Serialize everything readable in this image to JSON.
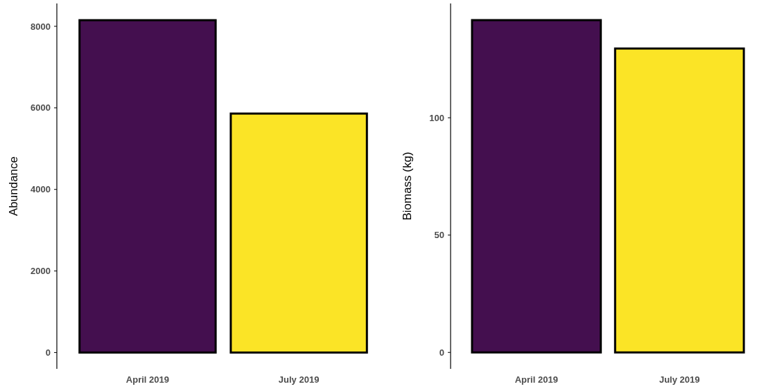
{
  "chart_data": [
    {
      "type": "bar",
      "ylabel": "Abundance",
      "categories": [
        "April 2019",
        "July 2019"
      ],
      "values": [
        8150,
        5860
      ],
      "colors": [
        "#440f4f",
        "#fbe426"
      ],
      "ylim": [
        -400,
        8560
      ],
      "yticks": [
        0,
        2000,
        4000,
        6000,
        8000
      ],
      "grid": false
    },
    {
      "type": "bar",
      "ylabel": "Biomass (kg)",
      "categories": [
        "April 2019",
        "July 2019"
      ],
      "values": [
        141.6,
        129.5
      ],
      "colors": [
        "#440f4f",
        "#fbe426"
      ],
      "ylim": [
        -7,
        148.7
      ],
      "yticks": [
        0,
        50,
        100
      ],
      "grid": false
    }
  ]
}
